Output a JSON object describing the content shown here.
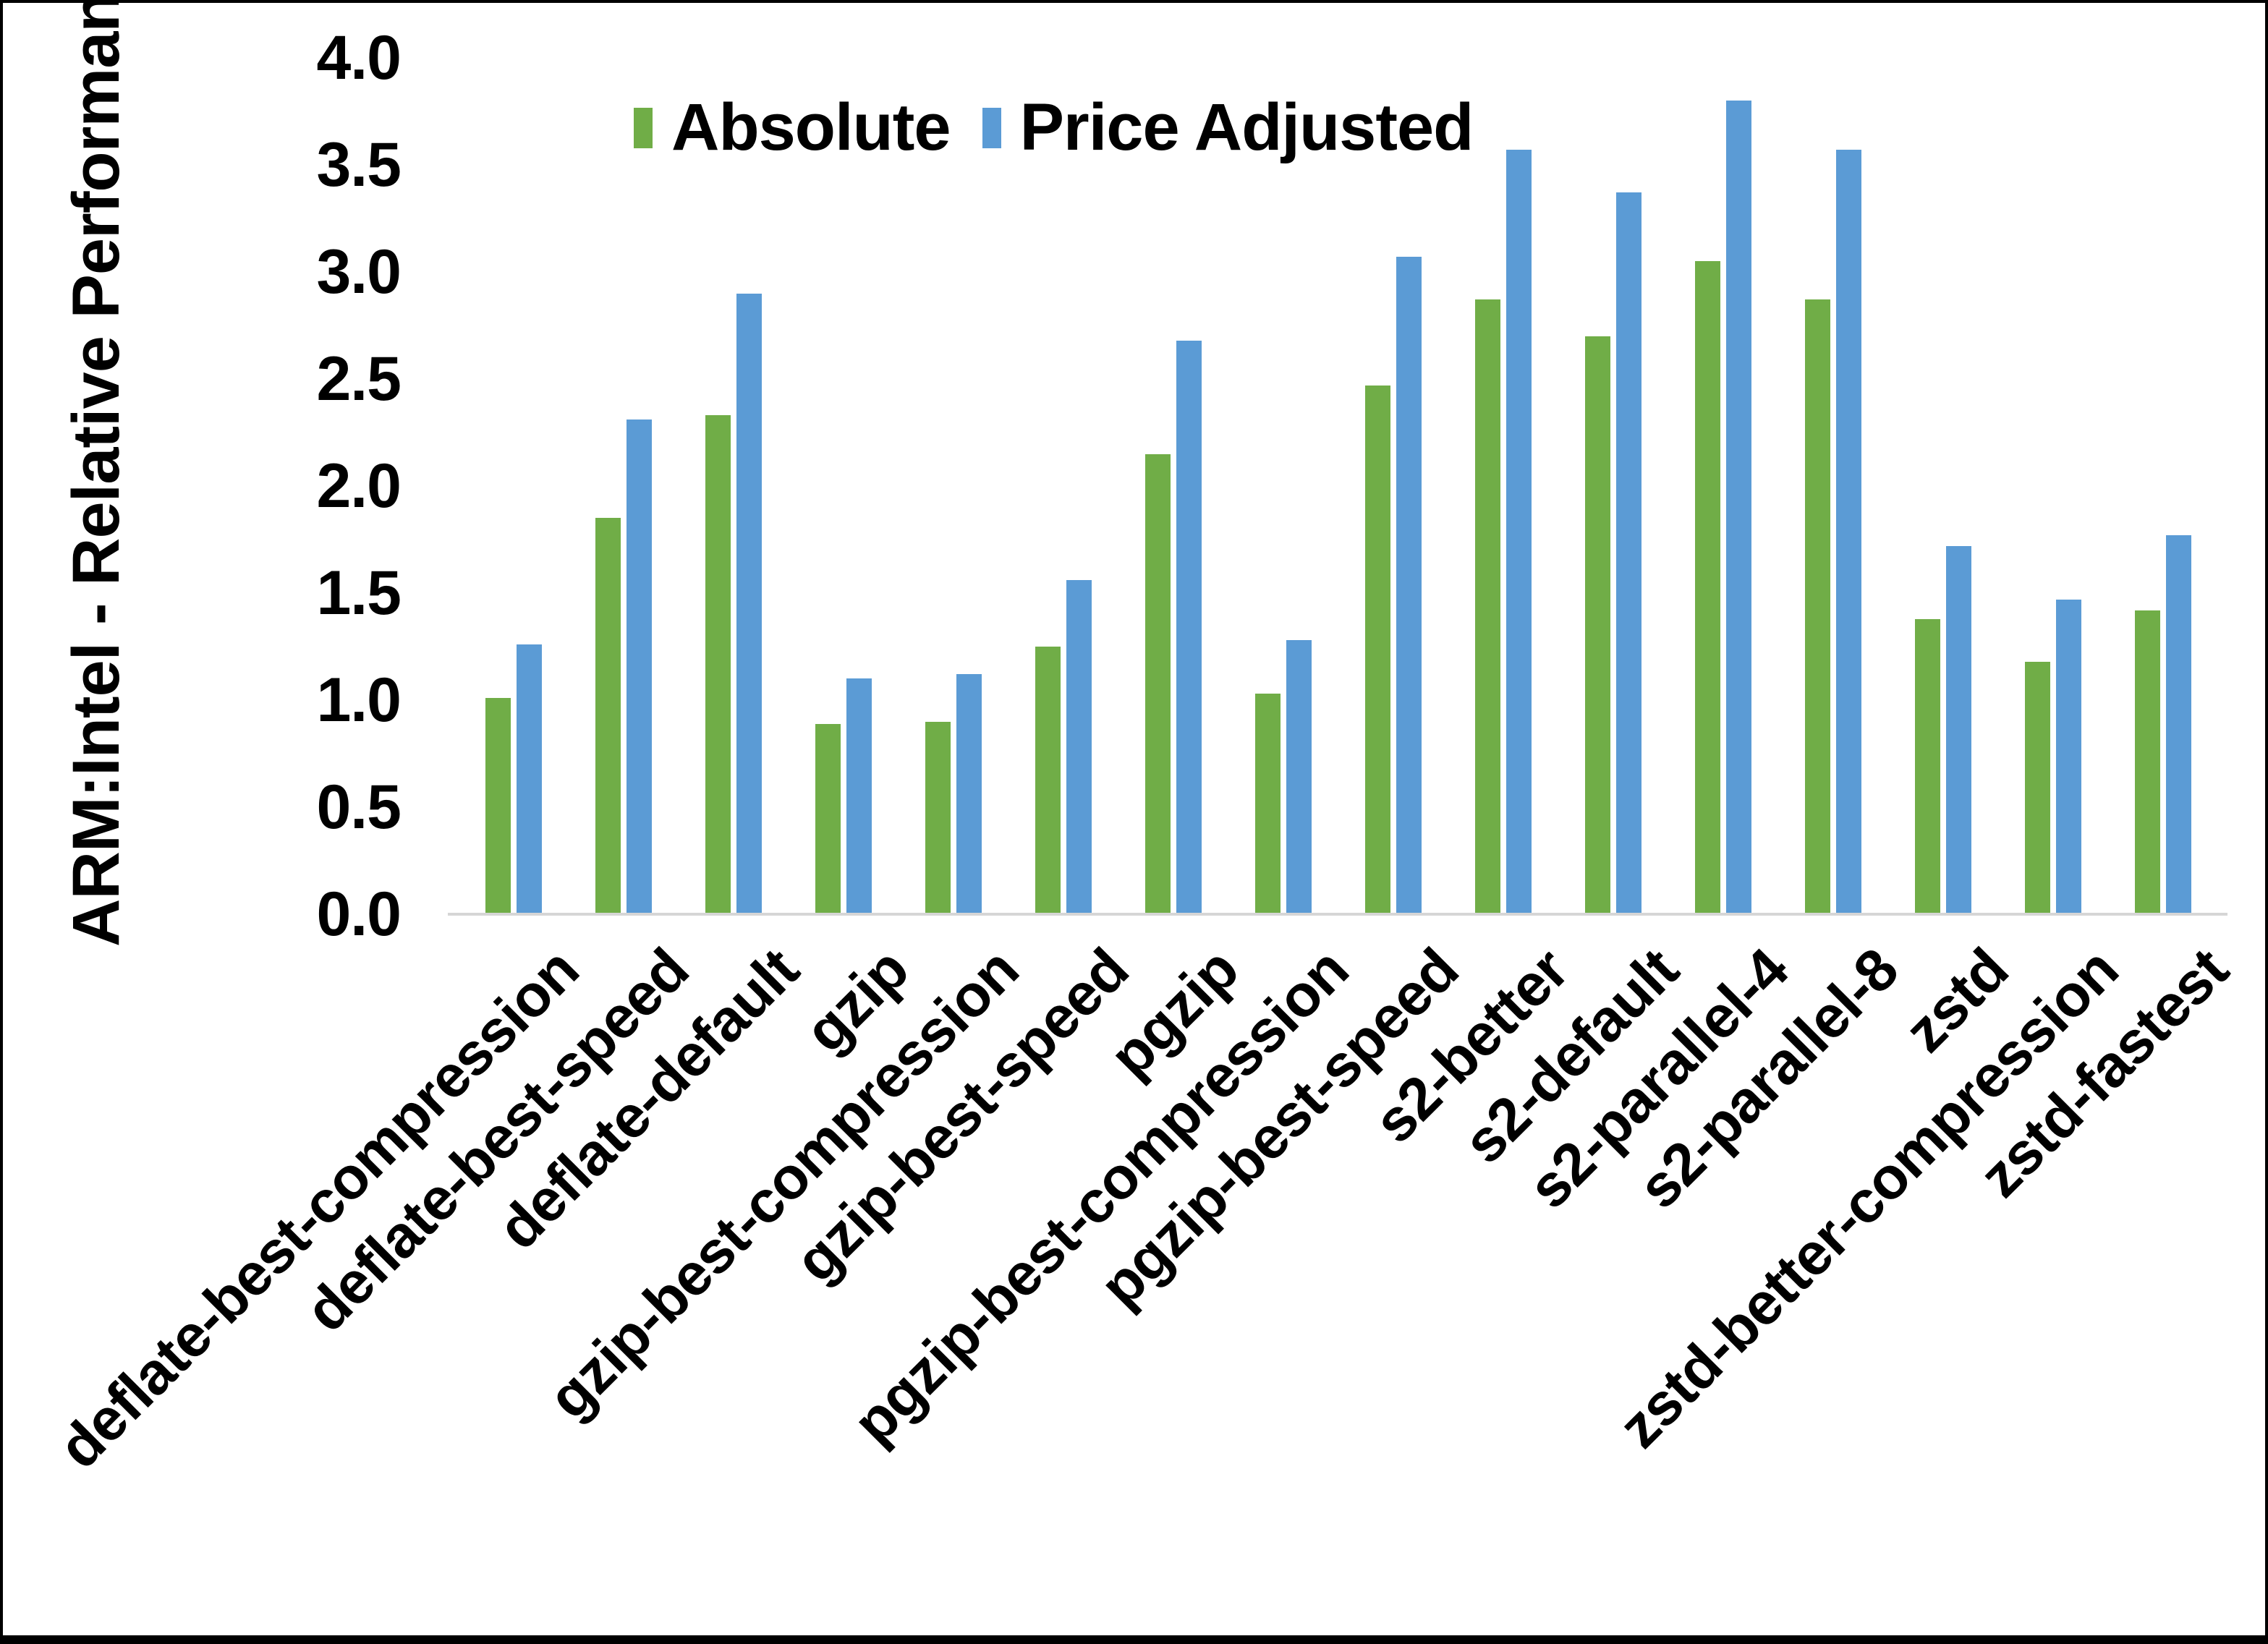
{
  "chart_data": {
    "type": "bar",
    "title": "",
    "ylabel": "ARM:Intel - Relative Performance",
    "xlabel": "",
    "ylim": [
      0,
      4
    ],
    "ytick_step": 0.5,
    "ytick_labels": [
      "0.0",
      "0.5",
      "1.0",
      "1.5",
      "2.0",
      "2.5",
      "3.0",
      "3.5",
      "4.0"
    ],
    "grid": false,
    "legend_position": "top-center",
    "axis_line_color": "#D6D6D6",
    "text_color": "#000000",
    "categories": [
      "deflate-best-compression",
      "deflate-best-speed",
      "deflate-default",
      "gzip",
      "gzip-best-compression",
      "gzip-best-speed",
      "pgzip",
      "pgzip-best-compression",
      "pgzip-best-speed",
      "s2-better",
      "s2-default",
      "s2-parallel-4",
      "s2-parallel-8",
      "zstd",
      "zstd-better-compression",
      "zstd-fastest"
    ],
    "series": [
      {
        "name": "Absolute",
        "color": "#70AD47",
        "values": [
          1.01,
          1.85,
          2.33,
          0.89,
          0.9,
          1.25,
          2.15,
          1.03,
          2.47,
          2.87,
          2.7,
          3.05,
          2.87,
          1.38,
          1.18,
          1.42
        ]
      },
      {
        "name": "Price Adjusted",
        "color": "#5B9BD5",
        "values": [
          1.26,
          2.31,
          2.9,
          1.1,
          1.12,
          1.56,
          2.68,
          1.28,
          3.07,
          3.57,
          3.37,
          3.8,
          3.57,
          1.72,
          1.47,
          1.77
        ]
      }
    ]
  }
}
